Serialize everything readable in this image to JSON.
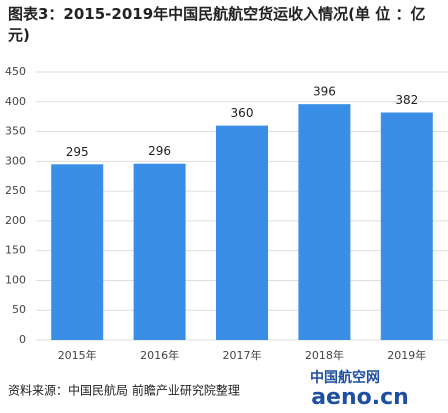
{
  "chart_data": {
    "type": "bar",
    "title": "图表3：2015-2019年中国民航航空货运收入情况(单 位 ：亿元)",
    "categories": [
      "2015年",
      "2016年",
      "2017年",
      "2018年",
      "2019年"
    ],
    "values": [
      295,
      296,
      360,
      396,
      382
    ],
    "color": "#3a8ee6",
    "ylim": [
      0,
      450
    ],
    "yticks": [
      0,
      50,
      100,
      150,
      200,
      250,
      300,
      350,
      400,
      450
    ],
    "grid": true,
    "source": "资料来源：中国民航局 前瞻产业研究院整理"
  },
  "watermark": {
    "cn": "中国航空网",
    "en": "aeno.cn"
  }
}
